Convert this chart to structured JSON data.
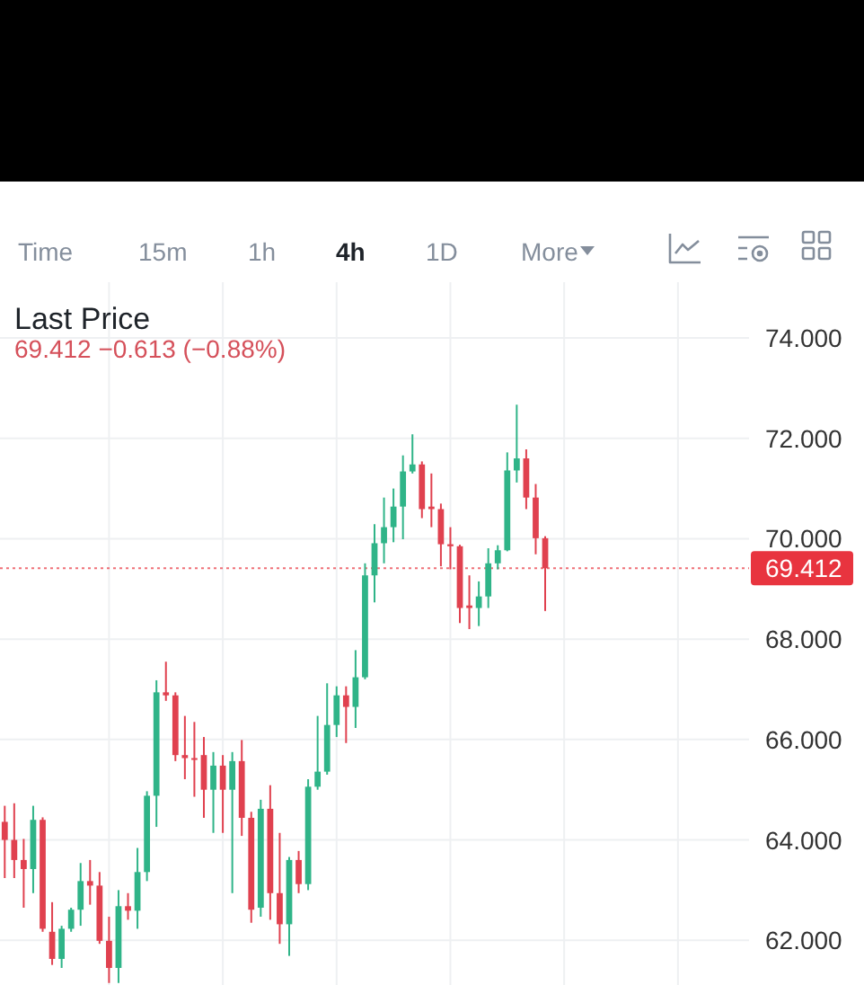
{
  "chart_data": {
    "type": "candlestick",
    "title": "Last Price",
    "subtitle": "69.412 −0.613 (−0.88%)",
    "annotations": [
      "Time",
      "15m",
      "1h",
      "4h",
      "1D",
      "More"
    ],
    "categories": [
      null,
      null,
      null,
      null,
      null,
      null,
      null,
      null,
      null,
      null,
      null,
      null,
      null,
      null,
      null,
      null,
      null,
      null,
      null,
      null,
      null,
      null,
      null,
      null,
      null,
      null,
      null,
      null,
      null,
      null,
      null,
      null,
      null,
      null,
      null,
      null,
      null,
      null,
      null,
      null,
      null,
      null,
      null,
      null,
      null,
      null,
      null,
      null,
      null,
      null,
      null,
      null,
      null,
      null,
      null,
      null,
      null,
      null,
      null,
      null,
      null,
      null,
      null,
      null,
      null,
      null,
      null,
      null,
      null,
      null,
      null,
      null,
      null,
      null,
      null,
      null,
      null,
      null,
      null
    ],
    "ohlc": [
      [
        64.36,
        64.68,
        63.24,
        64.0
      ],
      [
        64.0,
        64.73,
        63.24,
        63.6
      ],
      [
        63.6,
        64.02,
        62.65,
        63.42
      ],
      [
        63.42,
        64.68,
        62.94,
        64.4
      ],
      [
        64.4,
        64.45,
        62.17,
        62.23
      ],
      [
        62.17,
        62.76,
        61.51,
        61.63
      ],
      [
        61.63,
        62.29,
        61.45,
        62.23
      ],
      [
        62.23,
        62.65,
        62.17,
        62.61
      ],
      [
        62.61,
        63.54,
        62.29,
        63.18
      ],
      [
        63.18,
        63.6,
        62.71,
        63.09
      ],
      [
        63.09,
        63.36,
        61.93,
        61.99
      ],
      [
        61.99,
        62.47,
        61.15,
        61.45
      ],
      [
        61.45,
        63.0,
        61.15,
        62.68
      ],
      [
        62.68,
        62.94,
        62.41,
        62.59
      ],
      [
        62.59,
        63.84,
        62.23,
        63.36
      ],
      [
        63.36,
        64.97,
        63.18,
        64.88
      ],
      [
        64.88,
        67.18,
        64.26,
        66.94
      ],
      [
        66.94,
        67.55,
        66.77,
        66.88
      ],
      [
        66.88,
        66.94,
        65.57,
        65.69
      ],
      [
        65.69,
        66.47,
        65.21,
        65.63
      ],
      [
        65.63,
        66.35,
        64.86,
        65.6
      ],
      [
        65.69,
        66.05,
        64.44,
        65.0
      ],
      [
        65.0,
        65.75,
        64.14,
        65.48
      ],
      [
        65.48,
        65.69,
        64.14,
        65.0
      ],
      [
        65.0,
        65.75,
        62.94,
        65.57
      ],
      [
        65.57,
        65.99,
        64.08,
        64.44
      ],
      [
        64.44,
        64.56,
        62.35,
        62.61
      ],
      [
        62.65,
        64.8,
        62.47,
        64.62
      ],
      [
        64.62,
        65.09,
        62.41,
        62.94
      ],
      [
        62.94,
        64.14,
        61.93,
        62.32
      ],
      [
        62.32,
        63.66,
        61.69,
        63.6
      ],
      [
        63.6,
        63.78,
        62.94,
        63.12
      ],
      [
        63.12,
        65.21,
        63.0,
        65.06
      ],
      [
        65.06,
        66.47,
        65.0,
        65.36
      ],
      [
        65.36,
        67.12,
        65.3,
        66.29
      ],
      [
        66.29,
        67.06,
        66.05,
        66.88
      ],
      [
        66.88,
        67.06,
        65.93,
        66.65
      ],
      [
        66.65,
        67.78,
        66.23,
        67.24
      ],
      [
        67.24,
        69.51,
        67.2,
        69.27
      ],
      [
        69.27,
        70.29,
        68.73,
        69.91
      ],
      [
        69.91,
        70.82,
        69.51,
        70.23
      ],
      [
        70.23,
        71.0,
        69.93,
        70.64
      ],
      [
        70.64,
        71.66,
        69.99,
        71.34
      ],
      [
        71.34,
        72.08,
        71.3,
        71.48
      ],
      [
        71.48,
        71.54,
        70.41,
        70.59
      ],
      [
        70.64,
        71.3,
        70.23,
        70.59
      ],
      [
        70.59,
        70.7,
        69.45,
        69.89
      ],
      [
        69.89,
        70.23,
        69.39,
        69.85
      ],
      [
        69.85,
        69.88,
        68.32,
        68.62
      ],
      [
        68.67,
        69.27,
        68.2,
        68.62
      ],
      [
        68.62,
        69.15,
        68.26,
        68.85
      ],
      [
        68.85,
        69.81,
        68.62,
        69.51
      ],
      [
        69.51,
        69.87,
        69.39,
        69.77
      ],
      [
        69.77,
        71.72,
        69.75,
        71.36
      ],
      [
        71.36,
        72.67,
        71.12,
        71.6
      ],
      [
        71.6,
        71.78,
        70.59,
        70.82
      ],
      [
        70.82,
        71.09,
        69.69,
        70.01
      ],
      [
        70.01,
        70.05,
        68.56,
        69.412
      ],
      null,
      null,
      null,
      null,
      null,
      null,
      null,
      null,
      null,
      null,
      null,
      null,
      null,
      null,
      null,
      null,
      null,
      null,
      null,
      null,
      null
    ],
    "colors": [
      "#e0414f",
      "#e0414f",
      "#e0414f",
      "#2fb488",
      "#e0414f",
      "#e0414f",
      "#2fb488",
      "#2fb488",
      "#2fb488",
      "#e0414f",
      "#e0414f",
      "#e0414f",
      "#2fb488",
      "#e0414f",
      "#2fb488",
      "#2fb488",
      "#2fb488",
      "#e0414f",
      "#e0414f",
      "#e0414f",
      "#e0414f",
      "#e0414f",
      "#2fb488",
      "#e0414f",
      "#2fb488",
      "#e0414f",
      "#e0414f",
      "#2fb488",
      "#e0414f",
      "#e0414f",
      "#2fb488",
      "#e0414f",
      "#2fb488",
      "#2fb488",
      "#2fb488",
      "#2fb488",
      "#e0414f",
      "#2fb488",
      "#2fb488",
      "#2fb488",
      "#2fb488",
      "#2fb488",
      "#2fb488",
      "#2fb488",
      "#e0414f",
      "#e0414f",
      "#e0414f",
      "#e0414f",
      "#e0414f",
      "#e0414f",
      "#2fb488",
      "#2fb488",
      "#2fb488",
      "#2fb488",
      "#2fb488",
      "#e0414f",
      "#e0414f",
      "#e0414f",
      null,
      null,
      null,
      null,
      null,
      null,
      null,
      null,
      null,
      null,
      null,
      null,
      null,
      null,
      null,
      null,
      null,
      null,
      null,
      null,
      null
    ],
    "ylim": [
      61.11,
      75.11
    ],
    "yticks": [
      {
        "value": 62,
        "label": "62.000"
      },
      {
        "value": 64,
        "label": "64.000"
      },
      {
        "value": 66,
        "label": "66.000"
      },
      {
        "value": 68,
        "label": "68.000"
      },
      {
        "value": 70,
        "label": "70.000"
      },
      {
        "value": 72,
        "label": "72.000"
      },
      {
        "value": 74,
        "label": "74.000"
      }
    ],
    "grid": true,
    "tick_labels": "y",
    "ref_lines": [
      {
        "axis": "y",
        "value": 69.412,
        "label": "69.412",
        "color": "#e8343f",
        "line_style": "dotted"
      }
    ]
  }
}
